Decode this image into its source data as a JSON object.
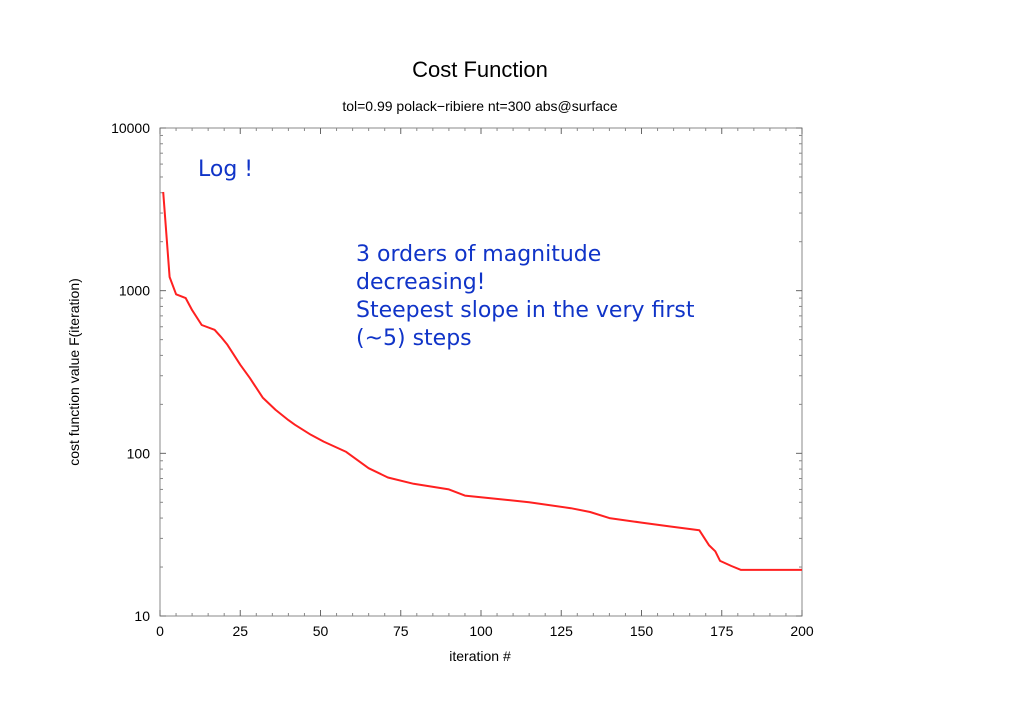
{
  "chart_data": {
    "type": "line",
    "title": "Cost Function",
    "subtitle": "tol=0.99 polack−ribiere nt=300 abs@surface",
    "xlabel": "iteration #",
    "ylabel": "cost function value F(iteration)",
    "xlim": [
      0,
      200
    ],
    "ylim": [
      10,
      10000
    ],
    "yscale": "log",
    "grid": false,
    "xticks": [
      "0",
      "25",
      "50",
      "75",
      "100",
      "125",
      "150",
      "175",
      "200"
    ],
    "yticks": [
      "10",
      "100",
      "1000",
      "10000"
    ],
    "series": [
      {
        "name": "cost",
        "color": "#ff2020",
        "x": [
          1,
          3,
          5,
          8,
          10,
          13,
          17,
          19,
          21,
          25,
          28,
          32,
          36,
          40,
          42,
          47,
          51,
          58,
          65,
          71,
          79,
          90,
          95,
          103,
          115,
          128,
          134,
          140,
          150,
          159,
          168,
          171,
          173,
          174.5,
          178,
          181,
          200
        ],
        "y": [
          4040,
          1213,
          950,
          900,
          760,
          615,
          575,
          520,
          465,
          350,
          290,
          220,
          185,
          160,
          150,
          130,
          118,
          102,
          81,
          71,
          65,
          60,
          55,
          53,
          50,
          46,
          43.6,
          40,
          37.5,
          35.5,
          33.7,
          27.3,
          25,
          21.8,
          20.3,
          19.2,
          19.2
        ]
      }
    ],
    "annotations": [
      {
        "text": "Log !"
      },
      {
        "lines": [
          "3  orders  of  magnitude",
          "decreasing!",
          "Steepest slope  in  the very  first",
          "(~5)  steps"
        ]
      }
    ]
  }
}
